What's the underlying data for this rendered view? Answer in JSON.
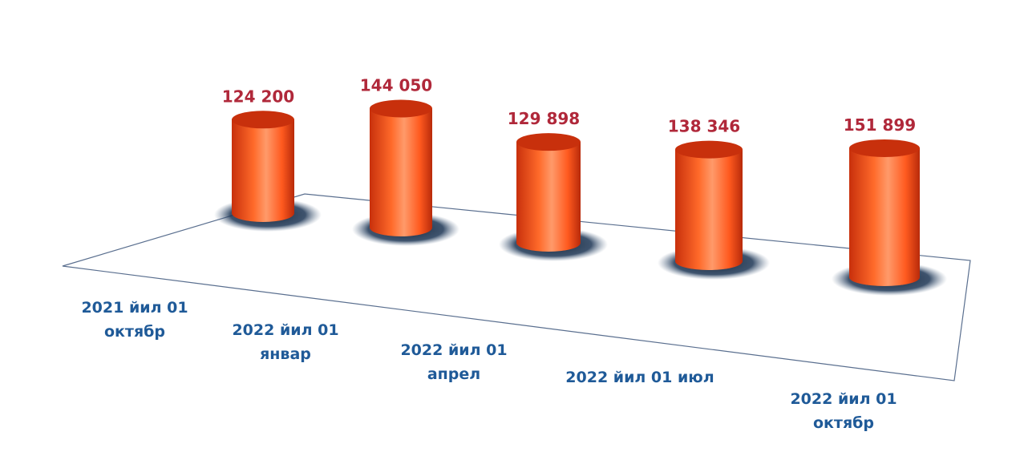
{
  "chart_data": {
    "type": "bar",
    "style": "3d-cylinder",
    "categories": [
      [
        "2021 йил 01",
        "октябр"
      ],
      [
        "2022 йил 01",
        "январ"
      ],
      [
        "2022 йил 01",
        "апрел"
      ],
      [
        "2022 йил 01 июл"
      ],
      [
        "2022 йил 01",
        "октябр"
      ]
    ],
    "values": [
      124200,
      144050,
      129898,
      138346,
      151899
    ],
    "data_labels": [
      "124 200",
      "144 050",
      "129 898",
      "138 346",
      "151 899"
    ],
    "title": "",
    "xlabel": "",
    "ylabel": "",
    "grid": false,
    "legend": "none",
    "colors": {
      "bar": "#ff5a1f",
      "bar_dark": "#c8300c",
      "bar_light": "#ff9a6a",
      "shadow": "#1c3554",
      "value_label": "#b0283a",
      "category_label": "#1f5a98",
      "floor_line": "#5a6f8f"
    }
  }
}
